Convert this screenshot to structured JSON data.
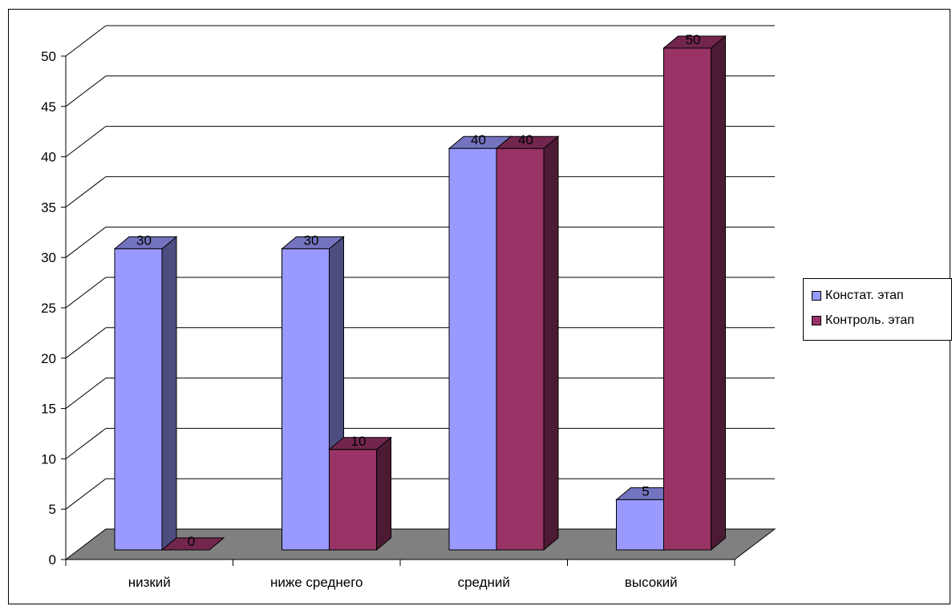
{
  "chart_data": {
    "type": "bar",
    "categories": [
      "низкий",
      "ниже среднего",
      "средний",
      "высокий"
    ],
    "series": [
      {
        "name": "Констат. этап",
        "values": [
          30,
          30,
          40,
          5
        ],
        "color": "#9999ff"
      },
      {
        "name": "Контроль. этап",
        "values": [
          0,
          10,
          40,
          50
        ],
        "color": "#993366"
      }
    ],
    "ylim": [
      0,
      50
    ],
    "yticks": [
      0,
      5,
      10,
      15,
      20,
      25,
      30,
      35,
      40,
      45,
      50
    ],
    "grid": true,
    "legend": "right",
    "floor_color": "#808080"
  }
}
